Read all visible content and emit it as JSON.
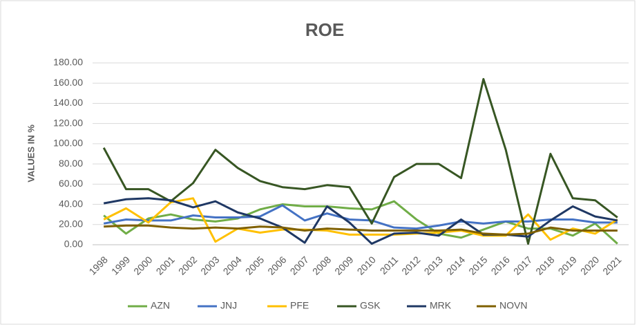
{
  "chart_data": {
    "type": "line",
    "title": "ROE",
    "ylabel": "VALUES IN %",
    "categories": [
      "1998",
      "1999",
      "2000",
      "2001",
      "2002",
      "2003",
      "2004",
      "2005",
      "2006",
      "2007",
      "2008",
      "2009",
      "2010",
      "2011",
      "2012",
      "2013",
      "2014",
      "2015",
      "2016",
      "2017",
      "2018",
      "2019",
      "2020",
      "2021"
    ],
    "series": [
      {
        "name": "AZN",
        "color": "#70ad47",
        "values": [
          29,
          11,
          26,
          30,
          25,
          23,
          26,
          35,
          40,
          38,
          38,
          36,
          35,
          43,
          25,
          11,
          7,
          15,
          23,
          16,
          16,
          9,
          21,
          1
        ]
      },
      {
        "name": "JNJ",
        "color": "#4472c4",
        "values": [
          21,
          25,
          24,
          24,
          29,
          27,
          27,
          28,
          39,
          24,
          31,
          25,
          24,
          17,
          16,
          19,
          23,
          21,
          23,
          23,
          25,
          25,
          22,
          22
        ]
      },
      {
        "name": "PFE",
        "color": "#ffc000",
        "values": [
          25,
          36,
          22,
          42,
          46,
          3,
          16,
          12,
          15,
          15,
          14,
          10,
          10,
          10,
          11,
          12,
          14,
          9,
          9,
          30,
          5,
          16,
          11,
          25
        ]
      },
      {
        "name": "GSK",
        "color": "#375623",
        "values": [
          96,
          55,
          55,
          43,
          61,
          94,
          76,
          63,
          57,
          55,
          59,
          57,
          21,
          67,
          80,
          80,
          66,
          164,
          94,
          1,
          90,
          46,
          44,
          27
        ]
      },
      {
        "name": "MRK",
        "color": "#1f3864",
        "values": [
          41,
          45,
          46,
          44,
          37,
          43,
          32,
          26,
          17,
          2,
          38,
          22,
          1,
          11,
          12,
          9,
          25,
          10,
          10,
          8,
          24,
          38,
          28,
          24
        ]
      },
      {
        "name": "NOVN",
        "color": "#7f6000",
        "values": [
          18,
          19,
          19,
          17,
          16,
          17,
          16,
          18,
          17,
          14,
          16,
          15,
          14,
          14,
          14,
          14,
          15,
          11,
          10,
          11,
          17,
          14,
          14,
          14
        ]
      }
    ],
    "ylim": [
      0,
      180
    ],
    "yticks": [
      {
        "value": 0,
        "label": "0.00"
      },
      {
        "value": 20,
        "label": "20.00"
      },
      {
        "value": 40,
        "label": "40.00"
      },
      {
        "value": 60,
        "label": "60.00"
      },
      {
        "value": 80,
        "label": "80.00"
      },
      {
        "value": 100,
        "label": "100.00"
      },
      {
        "value": 120,
        "label": "120.00"
      },
      {
        "value": 140,
        "label": "140.00"
      },
      {
        "value": 160,
        "label": "160.00"
      },
      {
        "value": 180,
        "label": "180.00"
      }
    ],
    "grid": true,
    "legend": "bottom"
  }
}
